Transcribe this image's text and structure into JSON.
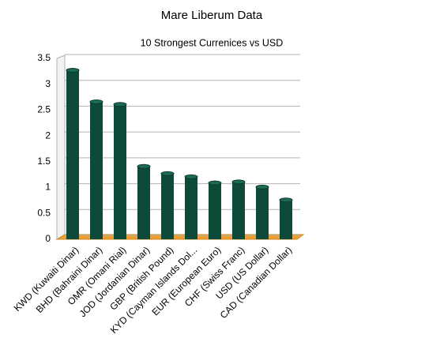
{
  "chart_data": {
    "type": "bar",
    "title": "Mare Liberum Data",
    "subtitle": "10 Strongest Currenices vs USD",
    "categories": [
      "KWD (Kuwaiti Dinar)",
      "BHD (Bahraini Dinar)",
      "OMR (Omani Rial)",
      "JOD (Jordanian Dinar)",
      "GBP (British Pound)",
      "KYD (Cayman Islands Dol...",
      "EUR (European Euro)",
      "CHF (Swiss Franc)",
      "USD (US Dollar)",
      "CAD (Canadian Dollar)"
    ],
    "values": [
      3.27,
      2.66,
      2.61,
      1.41,
      1.27,
      1.21,
      1.09,
      1.11,
      1.01,
      0.76
    ],
    "color": "#0d4a3a",
    "ylim": [
      0,
      3.5
    ],
    "yticks": [
      0,
      0.5,
      1,
      1.5,
      2,
      2.5,
      3,
      3.5
    ],
    "grid": true
  }
}
